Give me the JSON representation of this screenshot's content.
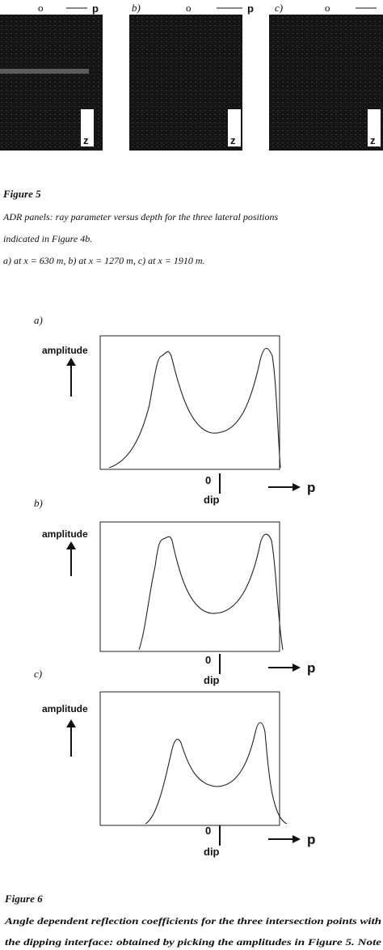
{
  "figure5": {
    "panel_labels": [
      "b)",
      "c)"
    ],
    "origin": "o",
    "axis": "p",
    "depth": "z",
    "caption": {
      "title": "Figure 5",
      "lines": [
        "ADR panels: ray parameter versus depth for the three lateral positions",
        "indicated in Figure 4b.",
        "a) at x = 630 m, b) at x = 1270 m, c) at x = 1910 m."
      ]
    }
  },
  "figure6": {
    "panels": [
      {
        "label": "a)",
        "y_label": "amplitude",
        "origin": "0",
        "marker": "dip",
        "x_label": "p"
      },
      {
        "label": "b)",
        "y_label": "amplitude",
        "origin": "0",
        "marker": "dip",
        "x_label": "p"
      },
      {
        "label": "c)",
        "y_label": "amplitude",
        "origin": "0",
        "marker": "dip",
        "x_label": "p"
      }
    ],
    "caption": {
      "title": "Figure 6",
      "lines": [
        "Angle dependent reflection coefficients for the three intersection points with",
        "the dipping interface: obtained by picking the amplitudes in Figure 5. Note"
      ]
    }
  }
}
